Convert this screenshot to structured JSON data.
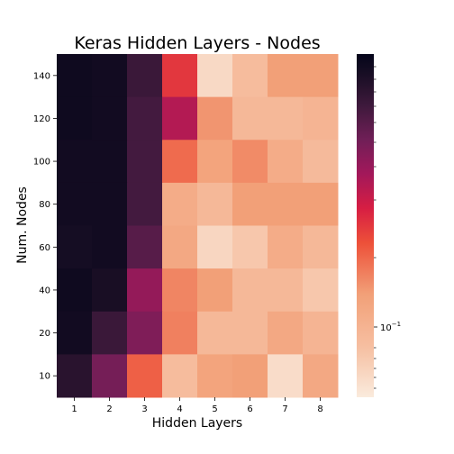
{
  "chart_data": {
    "type": "heatmap",
    "title": "Keras Hidden Layers - Nodes",
    "xlabel": "Hidden Layers",
    "ylabel": "Num. Nodes",
    "x_categories": [
      "1",
      "2",
      "3",
      "4",
      "5",
      "6",
      "7",
      "8"
    ],
    "y_categories": [
      "140",
      "120",
      "100",
      "80",
      "60",
      "40",
      "20",
      "10"
    ],
    "colormap": "rocket",
    "color_scale": "log",
    "colorbar": {
      "position": "right",
      "labeled_tick_base": "10",
      "labeled_tick_exponent": "−1"
    },
    "values": [
      [
        0.97,
        0.96,
        0.86,
        0.5,
        0.06,
        0.16,
        0.3,
        0.3
      ],
      [
        0.97,
        0.96,
        0.84,
        0.62,
        0.32,
        0.18,
        0.18,
        0.2
      ],
      [
        0.96,
        0.96,
        0.84,
        0.4,
        0.28,
        0.34,
        0.24,
        0.17
      ],
      [
        0.96,
        0.96,
        0.84,
        0.24,
        0.18,
        0.3,
        0.3,
        0.3
      ],
      [
        0.95,
        0.96,
        0.8,
        0.26,
        0.07,
        0.12,
        0.24,
        0.18
      ],
      [
        0.97,
        0.94,
        0.68,
        0.35,
        0.3,
        0.18,
        0.18,
        0.12
      ],
      [
        0.96,
        0.86,
        0.72,
        0.36,
        0.18,
        0.18,
        0.26,
        0.2
      ],
      [
        0.9,
        0.74,
        0.42,
        0.16,
        0.28,
        0.3,
        0.05,
        0.26
      ]
    ]
  }
}
